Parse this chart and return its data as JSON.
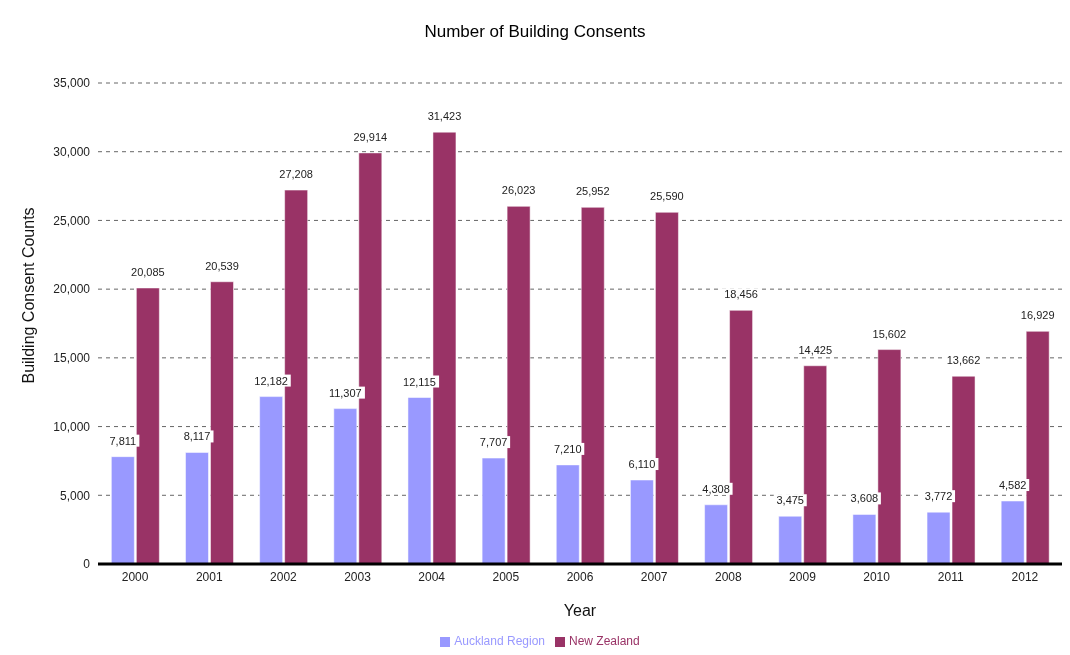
{
  "chart_data": {
    "type": "bar",
    "title": "Number of Building Consents",
    "xlabel": "Year",
    "ylabel": "Building Consent Counts",
    "categories": [
      "2000",
      "2001",
      "2002",
      "2003",
      "2004",
      "2005",
      "2006",
      "2007",
      "2008",
      "2009",
      "2010",
      "2011",
      "2012"
    ],
    "series": [
      {
        "name": "Auckland Region",
        "color": "#9999ff",
        "values": [
          7811,
          8117,
          12182,
          11307,
          12115,
          7707,
          7210,
          6110,
          4308,
          3475,
          3608,
          3772,
          4582
        ],
        "value_labels": [
          "7,811",
          "8,117",
          "12,182",
          "11,307",
          "12,115",
          "7,707",
          "7,210",
          "6,110",
          "4,308",
          "3,475",
          "3,608",
          "3,772",
          "4,582"
        ]
      },
      {
        "name": "New Zealand",
        "color": "#993366",
        "values": [
          20085,
          20539,
          27208,
          29914,
          31423,
          26023,
          25952,
          25590,
          18456,
          14425,
          15602,
          13662,
          16929
        ],
        "value_labels": [
          "20,085",
          "20,539",
          "27,208",
          "29,914",
          "31,423",
          "26,023",
          "25,952",
          "25,590",
          "18,456",
          "14,425",
          "15,602",
          "13,662",
          "16,929"
        ]
      }
    ],
    "ylim": [
      0,
      35000
    ],
    "yticks": [
      {
        "value": 0,
        "label": "0"
      },
      {
        "value": 5000,
        "label": "5,000"
      },
      {
        "value": 10000,
        "label": "10,000"
      },
      {
        "value": 15000,
        "label": "15,000"
      },
      {
        "value": 20000,
        "label": "20,000"
      },
      {
        "value": 25000,
        "label": "25,000"
      },
      {
        "value": 30000,
        "label": "30,000"
      },
      {
        "value": 35000,
        "label": "35,000"
      }
    ],
    "grid": "y",
    "legend": "bottom"
  }
}
